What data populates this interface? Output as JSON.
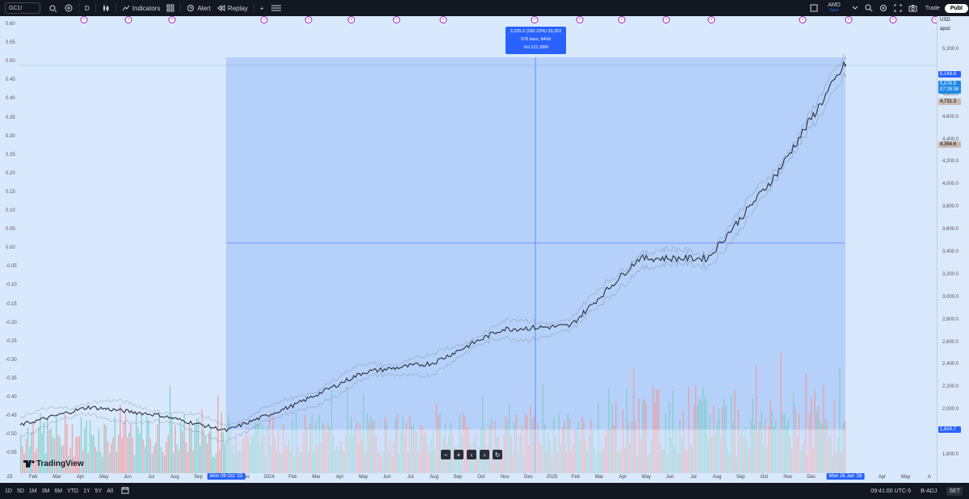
{
  "toolbar": {
    "symbol": "GC1!",
    "interval": "D",
    "indicators": "Indicators",
    "alert": "Alert",
    "replay": "Replay",
    "account": "AMD",
    "account_status": "Save",
    "trade": "Trade",
    "publish": "Publ"
  },
  "left_scale_ticks": [
    "0.60",
    "0.55",
    "0.50",
    "0.45",
    "0.40",
    "0.35",
    "0.30",
    "0.25",
    "0.20",
    "0.15",
    "0.10",
    "0.05",
    "0.00",
    "-0.05",
    "-0.10",
    "-0.15",
    "-0.20",
    "-0.25",
    "-0.30",
    "-0.35",
    "-0.40",
    "-0.45",
    "-0.50",
    "-0.55"
  ],
  "price_scale": {
    "currency": "USD",
    "mode": "apoz",
    "ticks": [
      "5,200.0",
      "4,800.0",
      "4,600.0",
      "4,400.0",
      "4,200.0",
      "4,000.0",
      "3,800.0",
      "3,600.0",
      "3,400.0",
      "3,200.0",
      "3,000.0",
      "2,800.0",
      "2,600.0",
      "2,400.0",
      "2,200.0",
      "2,000.0",
      "1,600.0"
    ],
    "tag_high": "5,149.9",
    "tag_current": "5,076.9",
    "tag_countdown": "07:28:58",
    "tag_mid": "4,731.3",
    "tag_low": "4,354.6",
    "tag_start": "1,824.7"
  },
  "measure": {
    "line1": "3,325.2 (182.23%) 33,252",
    "line2": "576 bars, 840d",
    "line3": "Vol 121.28M"
  },
  "x_axis": {
    "labels": [
      "23",
      "Feb",
      "Mar",
      "Apr",
      "May",
      "Jun",
      "Jul",
      "Aug",
      "Sep",
      "Nov",
      "Dec",
      "2024",
      "Feb",
      "Mar",
      "Apr",
      "May",
      "Jun",
      "Jul",
      "Aug",
      "Sep",
      "Oct",
      "Nov",
      "Dec",
      "2025",
      "Feb",
      "Mar",
      "Apr",
      "May",
      "Jun",
      "Jul",
      "Aug",
      "Sep",
      "Oct",
      "Nov",
      "Dec",
      "2",
      "Mar",
      "Apr",
      "May",
      "A"
    ],
    "start_highlight": "Mon 09 Oct '23",
    "end_highlight": "Mon 26 Jan '26"
  },
  "logo": "TradingView",
  "bottom": {
    "ranges": [
      "1D",
      "5D",
      "1M",
      "3M",
      "6M",
      "YTD",
      "1Y",
      "5Y",
      "All"
    ],
    "time": "09:41:00 UTC-5",
    "adj": "B-ADJ",
    "set": "SET"
  },
  "chart_data": {
    "type": "line",
    "symbol": "GC1!",
    "series": [
      {
        "x": [
          "2023-01",
          "2023-04",
          "2023-07",
          "2023-10",
          "2024-01",
          "2024-04",
          "2024-07",
          "2024-10",
          "2025-01",
          "2025-04",
          "2025-07",
          "2025-10",
          "2026-01"
        ],
        "values": [
          1870,
          2030,
          1960,
          1820,
          2050,
          2340,
          2420,
          2720,
          2750,
          3350,
          3350,
          4100,
          5077
        ]
      }
    ],
    "ylim": [
      1500,
      5300
    ]
  }
}
